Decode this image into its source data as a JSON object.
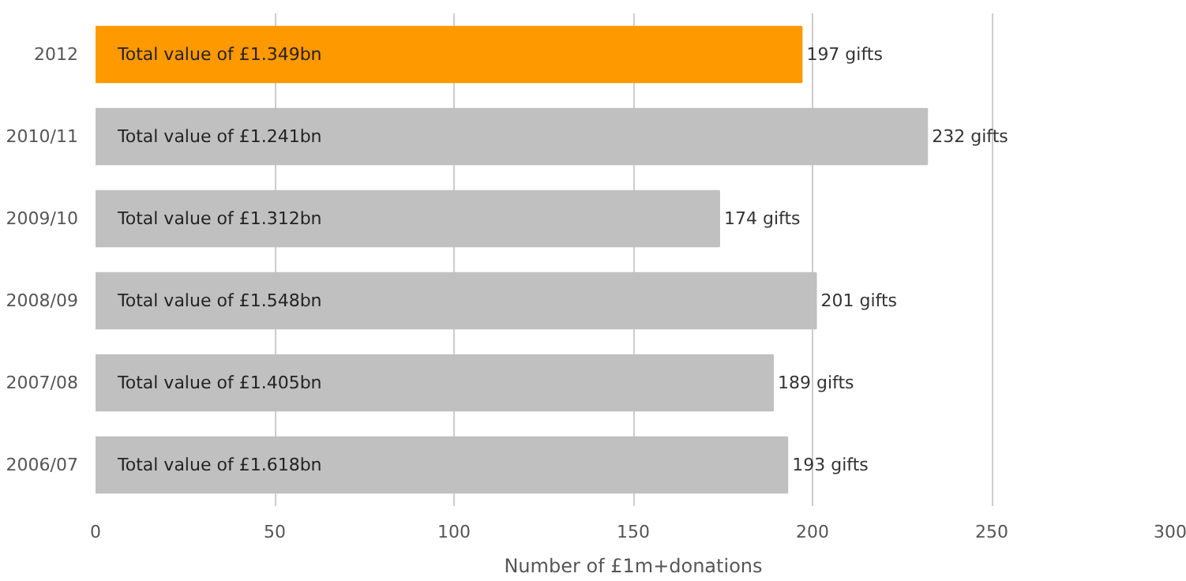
{
  "chart_data": {
    "type": "bar",
    "orientation": "horizontal",
    "xlabel": "Number of £1m+donations",
    "categories": [
      "2012",
      "2010/11",
      "2009/10",
      "2008/09",
      "2007/08",
      "2006/07"
    ],
    "values": [
      197,
      232,
      174,
      201,
      189,
      193
    ],
    "colors": [
      "#ff9900",
      "#c0c0c0",
      "#c0c0c0",
      "#c0c0c0",
      "#c0c0c0",
      "#c0c0c0"
    ],
    "value_labels": [
      "197 gifts",
      "232 gifts",
      "174 gifts",
      "201 gifts",
      "189 gifts",
      "193 gifts"
    ],
    "annotations": [
      {
        "text": "Total value of £1.349bn",
        "y": "2012"
      },
      {
        "text": "Total value of £1.241bn",
        "y": "2010/11"
      },
      {
        "text": "Total value of £1.312bn",
        "y": "2009/10"
      },
      {
        "text": "Total value of £1.548bn",
        "y": "2008/09"
      },
      {
        "text": "Total value of £1.405bn",
        "y": "2007/08"
      },
      {
        "text": "Total value of £1.618bn",
        "y": "2006/07"
      }
    ],
    "xlim": [
      0,
      300
    ],
    "xticks": [
      0,
      50,
      100,
      150,
      200,
      250,
      300
    ],
    "grid": "x"
  }
}
